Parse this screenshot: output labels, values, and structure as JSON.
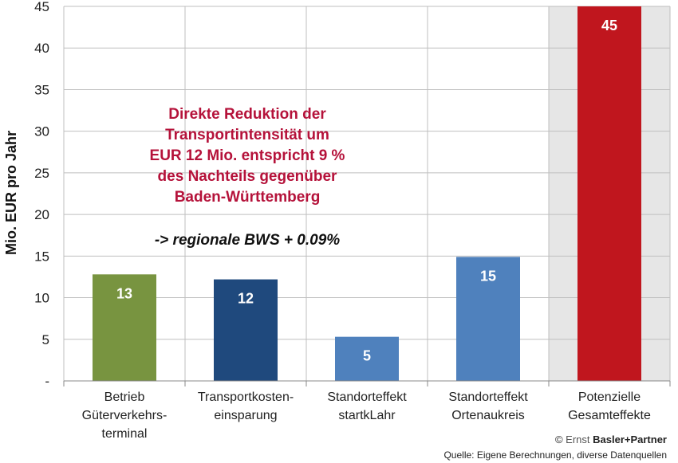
{
  "chart_data": {
    "type": "bar",
    "ylabel": "Mio. EUR pro Jahr",
    "ylim": [
      0,
      45
    ],
    "yticks": [
      "-",
      "5",
      "10",
      "15",
      "20",
      "25",
      "30",
      "35",
      "40",
      "45"
    ],
    "grid": true,
    "categories": [
      [
        "Betrieb",
        "Güterverkehrs-",
        "terminal"
      ],
      [
        "Transportkosten-",
        "einsparung"
      ],
      [
        "Standorteffekt",
        "startkLahr"
      ],
      [
        "Standorteffekt",
        "Ortenaukreis"
      ],
      [
        "Potenzielle",
        "Gesamteffekte"
      ]
    ],
    "values": [
      12.8,
      12.2,
      5.3,
      14.9,
      45
    ],
    "data_labels": [
      "13",
      "12",
      "5",
      "15",
      "45"
    ],
    "colors": [
      "#789440",
      "#1f497d",
      "#4f81bd",
      "#4f81bd",
      "#c0161e"
    ],
    "highlighted_category": 4,
    "annotation": {
      "lines": [
        "Direkte Reduktion der",
        "Transportintensität um",
        "EUR 12 Mio. entspricht 9 %",
        "des Nachteils gegenüber",
        "Baden-Württemberg"
      ],
      "note": "-> regionale BWS + 0.09%",
      "color": "#b5123a"
    }
  },
  "footer": {
    "copyright_symbol": "©",
    "brand_light": "Ernst",
    "brand_bold": "Basler+Partner",
    "source": "Quelle: Eigene Berechnungen, diverse Datenquellen"
  }
}
